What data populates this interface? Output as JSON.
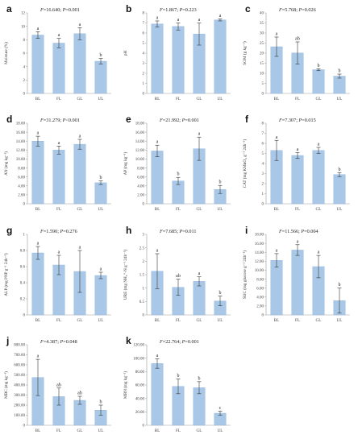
{
  "figure_title": "",
  "colors": {
    "bar": "#a9c8e8",
    "bar_stroke": "#8fb4dc",
    "axis": "#9a9a9a",
    "error": "#333333"
  },
  "chart_data": [
    {
      "type": "bar",
      "panel": "a",
      "stat_f": "=16.640; ",
      "stat_p": "=0.001",
      "ylabel": "Moisture (%)",
      "ylim": [
        0,
        12
      ],
      "yticks": [
        "0",
        "2",
        "4",
        "6",
        "8",
        "10",
        "12"
      ],
      "ytick_values": [
        0,
        2,
        4,
        6,
        8,
        10,
        12
      ],
      "categories": [
        "BL",
        "FL",
        "GL",
        "UL"
      ],
      "values": [
        8.7,
        7.5,
        8.9,
        4.8
      ],
      "errors": [
        0.5,
        0.7,
        0.9,
        0.4
      ],
      "significance": [
        "a",
        "a",
        "a",
        "b"
      ]
    },
    {
      "type": "bar",
      "panel": "b",
      "stat_f": "=1.867; ",
      "stat_p": "=0.223",
      "ylabel": "pH",
      "ylim": [
        0,
        8
      ],
      "yticks": [
        "0",
        "1",
        "2",
        "3",
        "4",
        "5",
        "6",
        "7",
        "8"
      ],
      "ytick_values": [
        0,
        1,
        2,
        3,
        4,
        5,
        6,
        7,
        8
      ],
      "categories": [
        "BL",
        "FL",
        "GL",
        "UL"
      ],
      "values": [
        6.9,
        6.65,
        5.9,
        7.3
      ],
      "errors": [
        0.3,
        0.35,
        1.1,
        0.1
      ],
      "significance": [
        "a",
        "a",
        "a",
        "a"
      ]
    },
    {
      "type": "bar",
      "panel": "c",
      "stat_f": "=5.768; ",
      "stat_p": "=0.026",
      "ylabel": "SOM (g kg⁻¹)",
      "ylim": [
        0,
        40
      ],
      "yticks": [
        "0",
        "5",
        "10",
        "15",
        "20",
        "25",
        "30",
        "35",
        "40"
      ],
      "ytick_values": [
        0,
        5,
        10,
        15,
        20,
        25,
        30,
        35,
        40
      ],
      "categories": [
        "BL",
        "FL",
        "GL",
        "UL"
      ],
      "values": [
        23.2,
        20.1,
        11.8,
        8.6
      ],
      "errors": [
        4.8,
        5.5,
        0.5,
        1.0
      ],
      "significance": [
        "a",
        "ab",
        "b",
        "b"
      ]
    },
    {
      "type": "bar",
      "panel": "d",
      "stat_f": "=31.279; ",
      "stat_p": "<0.001",
      "ylabel": "AN (mg kg⁻¹)",
      "ylim": [
        0,
        18
      ],
      "yticks": [
        "0",
        "2.00",
        "4.00",
        "6.00",
        "8.00",
        "10.00",
        "12.00",
        "14.00",
        "16.00",
        "18.00"
      ],
      "ytick_values": [
        0,
        2,
        4,
        6,
        8,
        10,
        12,
        14,
        16,
        18
      ],
      "categories": [
        "BL",
        "FL",
        "GL",
        "UL"
      ],
      "values": [
        14.0,
        12.0,
        13.3,
        4.7
      ],
      "errors": [
        1.1,
        0.9,
        1.1,
        0.4
      ],
      "significance": [
        "a",
        "a",
        "a",
        "b"
      ]
    },
    {
      "type": "bar",
      "panel": "e",
      "stat_f": "=21.992; ",
      "stat_p": "=0.001",
      "ylabel": "AP (mg kg⁻¹)",
      "ylim": [
        0,
        18
      ],
      "yticks": [
        "0",
        "2.00",
        "4.00",
        "6.00",
        "8.00",
        "10.00",
        "12.00",
        "14.00",
        "16.00",
        "18.00"
      ],
      "ytick_values": [
        0,
        2,
        4,
        6,
        8,
        10,
        12,
        14,
        16,
        18
      ],
      "categories": [
        "BL",
        "FL",
        "GL",
        "UL"
      ],
      "values": [
        11.8,
        5.1,
        12.3,
        3.2
      ],
      "errors": [
        1.3,
        0.8,
        2.6,
        0.9
      ],
      "significance": [
        "a",
        "b",
        "a",
        "b"
      ]
    },
    {
      "type": "bar",
      "panel": "f",
      "stat_f": "=7.307; ",
      "stat_p": "=0.015",
      "ylabel": "CAT (mg KMnO₄ g⁻¹ 24h⁻¹)",
      "ylim": [
        0,
        8
      ],
      "yticks": [
        "0",
        "1",
        "2",
        "3",
        "4",
        "5",
        "6",
        "7",
        "8"
      ],
      "ytick_values": [
        0,
        1,
        2,
        3,
        4,
        5,
        6,
        7,
        8
      ],
      "categories": [
        "BL",
        "FL",
        "GL",
        "UL"
      ],
      "values": [
        5.3,
        4.8,
        5.3,
        2.9
      ],
      "errors": [
        1.0,
        0.3,
        0.3,
        0.2
      ],
      "significance": [
        "a",
        "a",
        "a",
        "b"
      ]
    },
    {
      "type": "bar",
      "panel": "g",
      "stat_f": "=1.590; ",
      "stat_p": "=0.276",
      "ylabel": "ALP (mg PNP g⁻¹ 24h⁻¹)",
      "ylim": [
        0,
        1
      ],
      "yticks": [
        "0",
        "0.2",
        "0.4",
        "0.6",
        "0.8",
        "1"
      ],
      "ytick_values": [
        0,
        0.2,
        0.4,
        0.6,
        0.8,
        1.0
      ],
      "categories": [
        "BL",
        "FL",
        "GL",
        "UL"
      ],
      "values": [
        0.77,
        0.62,
        0.54,
        0.49
      ],
      "errors": [
        0.08,
        0.12,
        0.26,
        0.04
      ],
      "significance": [
        "a",
        "a",
        "a",
        "a"
      ]
    },
    {
      "type": "bar",
      "panel": "h",
      "stat_f": "=7.685; ",
      "stat_p": "=0.011",
      "ylabel": "URE (mg NH₄⁺-N g⁻¹ 24h⁻¹)",
      "ylim": [
        0,
        3
      ],
      "yticks": [
        "0",
        "0.5",
        "1",
        "1.5",
        "2",
        "2.5",
        "3"
      ],
      "ytick_values": [
        0,
        0.5,
        1,
        1.5,
        2,
        2.5,
        3
      ],
      "categories": [
        "BL",
        "FL",
        "GL",
        "UL"
      ],
      "values": [
        1.63,
        1.03,
        1.25,
        0.52
      ],
      "errors": [
        0.65,
        0.3,
        0.17,
        0.18
      ],
      "significance": [
        "a",
        "ab",
        "a",
        "b"
      ]
    },
    {
      "type": "bar",
      "panel": "i",
      "stat_f": "=11.566; ",
      "stat_p": "=0.004",
      "ylabel": "SUC (mg glucose g⁻¹ 24h⁻¹)",
      "ylim": [
        0,
        18
      ],
      "yticks": [
        "0",
        "2.00",
        "4.00",
        "6.00",
        "8.00",
        "10.00",
        "12.00",
        "14.00",
        "16.00",
        "18.00"
      ],
      "ytick_values": [
        0,
        2,
        4,
        6,
        8,
        10,
        12,
        14,
        16,
        18
      ],
      "categories": [
        "BL",
        "FL",
        "GL",
        "UL"
      ],
      "values": [
        12.2,
        14.5,
        10.8,
        3.2
      ],
      "errors": [
        1.5,
        1.2,
        2.5,
        2.8
      ],
      "significance": [
        "a",
        "a",
        "a",
        "b"
      ]
    },
    {
      "type": "bar",
      "panel": "j",
      "stat_f": "=4.387; ",
      "stat_p": "=0.048",
      "ylabel": "MBC (mg kg⁻¹)",
      "ylim": [
        0,
        800
      ],
      "yticks": [
        "0",
        "100.00",
        "200.00",
        "300.00",
        "400.00",
        "500.00",
        "600.00",
        "700.00",
        "800.00"
      ],
      "ytick_values": [
        0,
        100,
        200,
        300,
        400,
        500,
        600,
        700,
        800
      ],
      "categories": [
        "BL",
        "FL",
        "GL",
        "UL"
      ],
      "values": [
        475,
        285,
        248,
        150
      ],
      "errors": [
        180,
        85,
        40,
        50
      ],
      "significance": [
        "a",
        "ab",
        "ab",
        "b"
      ]
    },
    {
      "type": "bar",
      "panel": "k",
      "stat_f": "=22.764; ",
      "stat_p": "=0.001",
      "ylabel": "MBN (mg kg⁻¹)",
      "ylim": [
        0,
        120
      ],
      "yticks": [
        "0",
        "20.00",
        "40.00",
        "60.00",
        "80.00",
        "100.00",
        "120.00"
      ],
      "ytick_values": [
        0,
        20,
        40,
        60,
        80,
        100,
        120
      ],
      "categories": [
        "BL",
        "FL",
        "GL",
        "UL"
      ],
      "values": [
        92,
        58,
        56,
        18
      ],
      "errors": [
        7,
        11,
        9,
        3
      ],
      "significance": [
        "a",
        "b",
        "b",
        "c"
      ]
    }
  ]
}
